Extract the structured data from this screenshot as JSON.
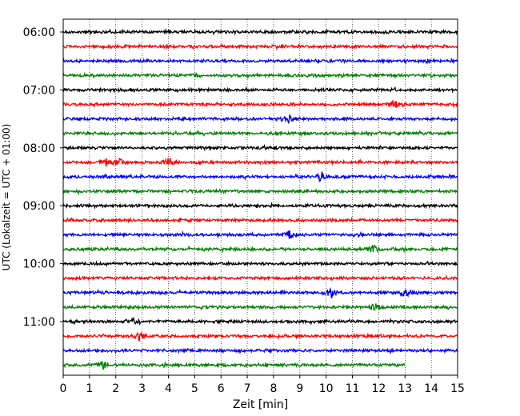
{
  "chart_data": {
    "type": "line",
    "xlabel": "Zeit  [min]",
    "ylabel": "UTC (Lokalzeit = UTC + 01:00)",
    "xlim": [
      0,
      15
    ],
    "x_ticks": [
      "0",
      "1",
      "2",
      "3",
      "4",
      "5",
      "6",
      "7",
      "8",
      "9",
      "10",
      "11",
      "12",
      "13",
      "14",
      "15"
    ],
    "y_ticks": [
      "06:00",
      "07:00",
      "08:00",
      "09:00",
      "10:00",
      "11:00"
    ],
    "grid": "vertical dotted",
    "colors": [
      "#000000",
      "#ff0000",
      "#0000ff",
      "#008000"
    ],
    "traces": [
      {
        "start": "06:00",
        "color": "#000000",
        "end_min": 15,
        "events": []
      },
      {
        "start": "06:15",
        "color": "#ff0000",
        "end_min": 15,
        "events": []
      },
      {
        "start": "06:30",
        "color": "#0000ff",
        "end_min": 15,
        "events": []
      },
      {
        "start": "06:45",
        "color": "#008000",
        "end_min": 15,
        "events": []
      },
      {
        "start": "07:00",
        "color": "#000000",
        "end_min": 15,
        "events": []
      },
      {
        "start": "07:15",
        "color": "#ff0000",
        "end_min": 15,
        "events": [
          12.6
        ]
      },
      {
        "start": "07:30",
        "color": "#0000ff",
        "end_min": 15,
        "events": [
          8.6
        ]
      },
      {
        "start": "07:45",
        "color": "#008000",
        "end_min": 15,
        "events": []
      },
      {
        "start": "08:00",
        "color": "#000000",
        "end_min": 15,
        "events": []
      },
      {
        "start": "08:15",
        "color": "#ff0000",
        "end_min": 15,
        "events": [
          1.6,
          2.1,
          4.0
        ]
      },
      {
        "start": "08:30",
        "color": "#0000ff",
        "end_min": 15,
        "events": [
          9.8
        ]
      },
      {
        "start": "08:45",
        "color": "#008000",
        "end_min": 15,
        "events": []
      },
      {
        "start": "09:00",
        "color": "#000000",
        "end_min": 15,
        "events": []
      },
      {
        "start": "09:15",
        "color": "#ff0000",
        "end_min": 15,
        "events": []
      },
      {
        "start": "09:30",
        "color": "#0000ff",
        "end_min": 15,
        "events": [
          8.6
        ]
      },
      {
        "start": "09:45",
        "color": "#008000",
        "end_min": 15,
        "events": [
          11.8
        ]
      },
      {
        "start": "10:00",
        "color": "#000000",
        "end_min": 15,
        "events": []
      },
      {
        "start": "10:15",
        "color": "#ff0000",
        "end_min": 15,
        "events": []
      },
      {
        "start": "10:30",
        "color": "#0000ff",
        "end_min": 15,
        "events": [
          10.2,
          13.0
        ]
      },
      {
        "start": "10:45",
        "color": "#008000",
        "end_min": 15,
        "events": [
          11.9
        ]
      },
      {
        "start": "11:00",
        "color": "#000000",
        "end_min": 15,
        "events": [
          2.7
        ]
      },
      {
        "start": "11:15",
        "color": "#ff0000",
        "end_min": 15,
        "events": [
          2.9
        ]
      },
      {
        "start": "11:30",
        "color": "#0000ff",
        "end_min": 15,
        "events": []
      },
      {
        "start": "11:45",
        "color": "#008000",
        "end_min": 13,
        "events": [
          1.5
        ]
      }
    ]
  }
}
